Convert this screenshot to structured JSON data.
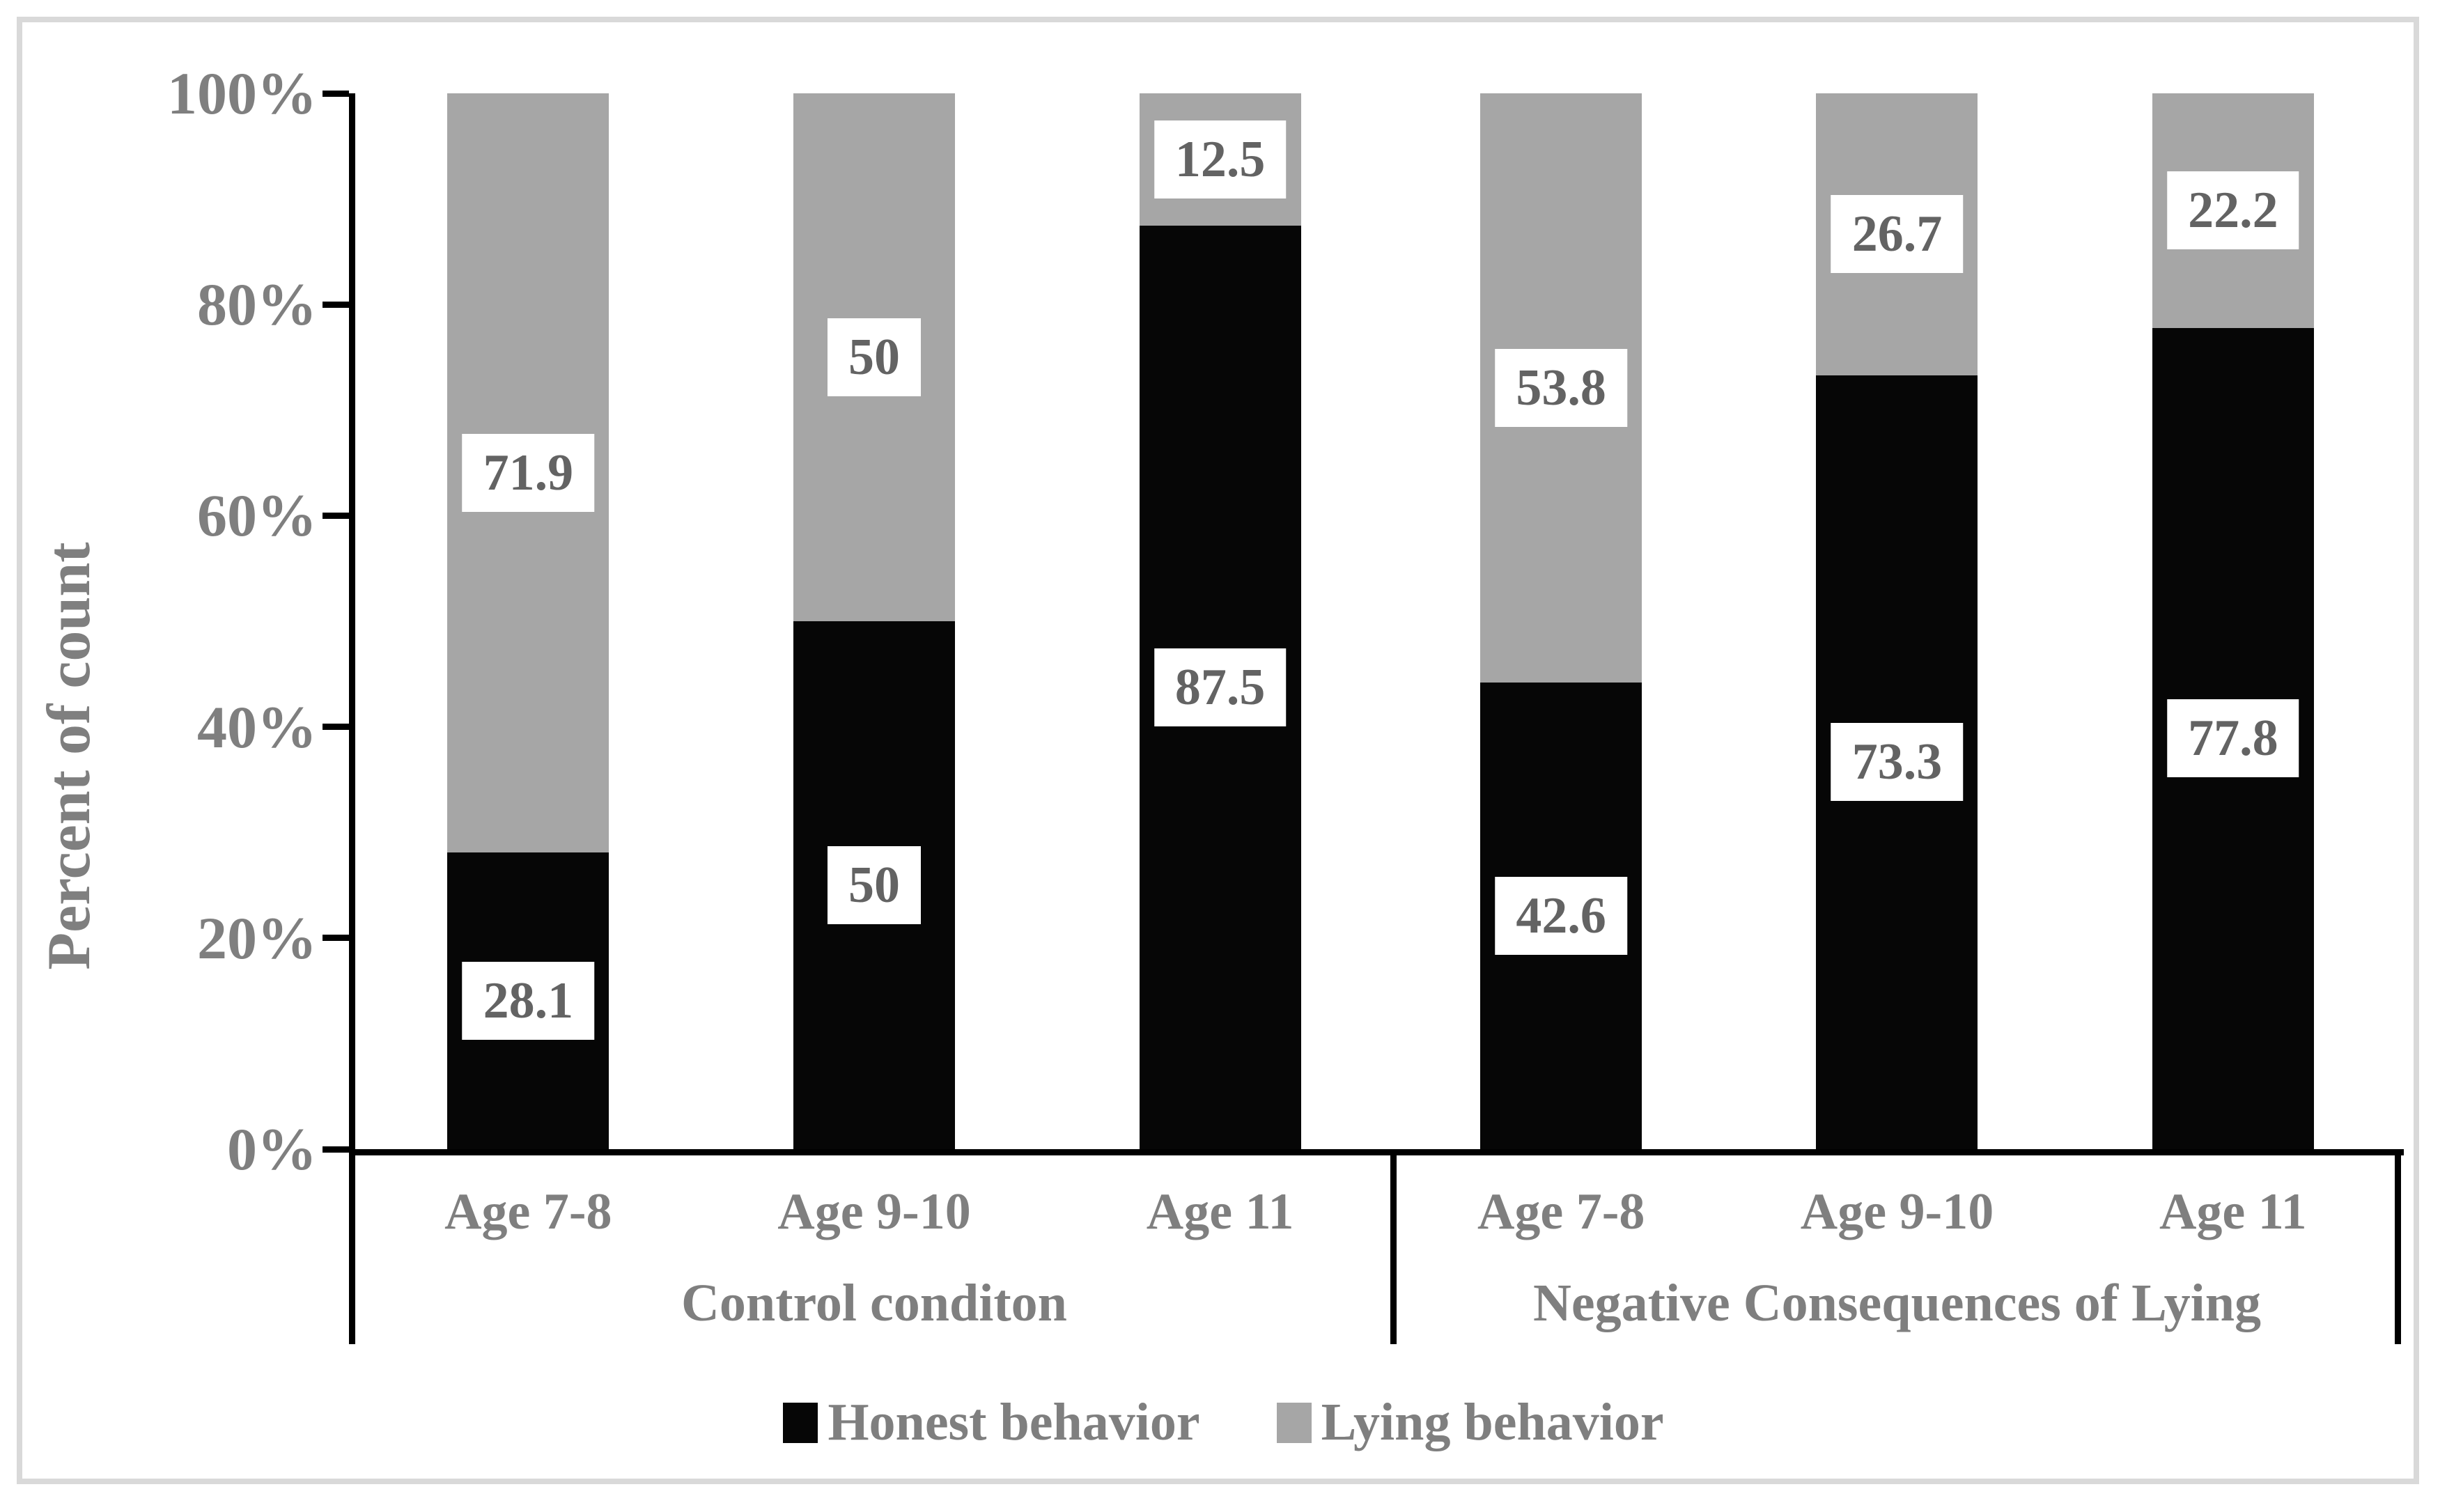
{
  "figure": {
    "frame_border_color": "#d9d9d9",
    "background_color": "#ffffff",
    "axis_color": "#000000",
    "axis_text_color": "#7f7f7f",
    "value_label_text_color": "#636363",
    "value_label_background": "#ffffff"
  },
  "chart_data": {
    "type": "bar",
    "stacked": true,
    "percent_stacked": true,
    "title": "",
    "ylabel": "Percent of count",
    "xlabel": "",
    "ylim": [
      0,
      100
    ],
    "ytick_labels_bottom_to_top": [
      "0%",
      "20%",
      "40%",
      "60%",
      "80%",
      "100%"
    ],
    "grid": false,
    "legend_position": "bottom",
    "groups": [
      {
        "label": "Control conditon",
        "categories": [
          "Age 7-8",
          "Age 9-10",
          "Age 11"
        ]
      },
      {
        "label": "Negative Consequences of Lying",
        "categories": [
          "Age 7-8",
          "Age 9-10",
          "Age 11"
        ]
      }
    ],
    "series": [
      {
        "name": "Honest behavior",
        "color": "#060606",
        "position": "bottom",
        "values": [
          28.1,
          50,
          87.5,
          42.6,
          73.3,
          77.8
        ],
        "value_labels": [
          "28.1",
          "50",
          "87.5",
          "42.6",
          "73.3",
          "77.8"
        ]
      },
      {
        "name": "Lying behavior",
        "color": "#a6a6a6",
        "position": "top",
        "values": [
          71.9,
          50,
          12.5,
          53.8,
          26.7,
          22.2
        ],
        "value_labels": [
          "71.9",
          "50",
          "12.5",
          "53.8",
          "26.7",
          "22.2"
        ]
      }
    ]
  }
}
